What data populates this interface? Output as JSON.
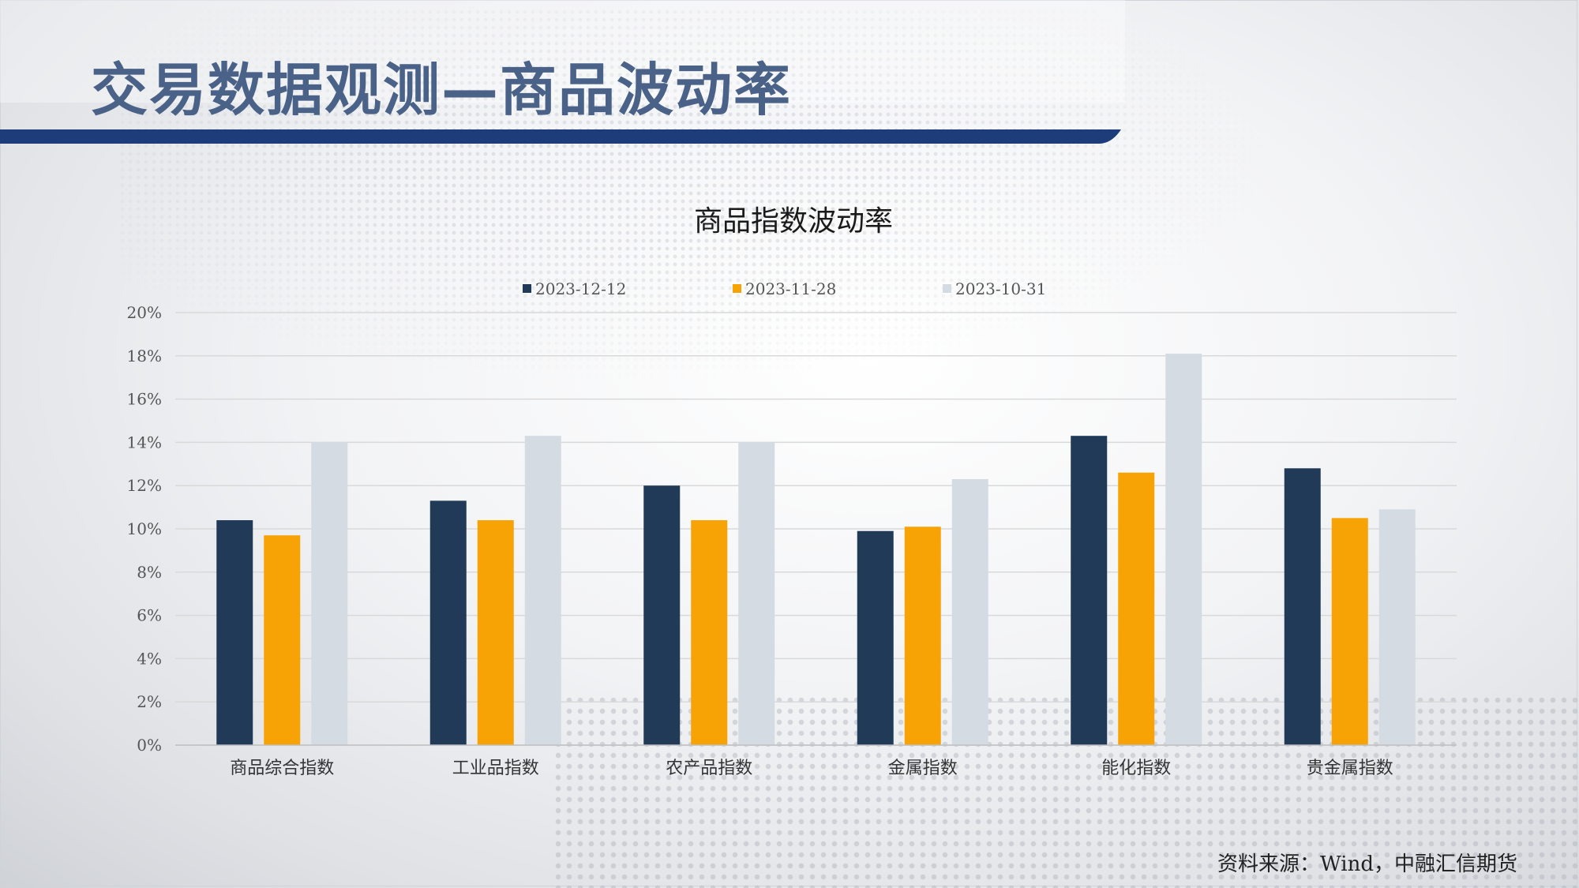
{
  "slide": {
    "title": "交易数据观测—商品波动率",
    "source": "资料来源：Wind，中融汇信期货"
  },
  "colors": {
    "title": "#4a6288",
    "accent_bar": "#1d3c7a",
    "series_1": "#203a57",
    "series_2": "#f7a305",
    "series_3": "#d5dbe3",
    "grid": "#d9d9d9"
  },
  "chart_data": {
    "type": "bar",
    "title": "商品指数波动率",
    "categories": [
      "商品综合指数",
      "工业品指数",
      "农产品指数",
      "金属指数",
      "能化指数",
      "贵金属指数"
    ],
    "series": [
      {
        "name": "2023-12-12",
        "values": [
          10.4,
          11.3,
          12.0,
          9.9,
          14.3,
          12.8
        ]
      },
      {
        "name": "2023-11-28",
        "values": [
          9.7,
          10.4,
          10.4,
          10.1,
          12.6,
          10.5
        ]
      },
      {
        "name": "2023-10-31",
        "values": [
          14.0,
          14.3,
          14.0,
          12.3,
          18.1,
          10.9
        ]
      }
    ],
    "yticks": [
      "0%",
      "2%",
      "4%",
      "6%",
      "8%",
      "10%",
      "12%",
      "14%",
      "16%",
      "18%",
      "20%"
    ],
    "ylim": [
      0,
      20
    ],
    "grid": true,
    "legend_position": "top"
  }
}
